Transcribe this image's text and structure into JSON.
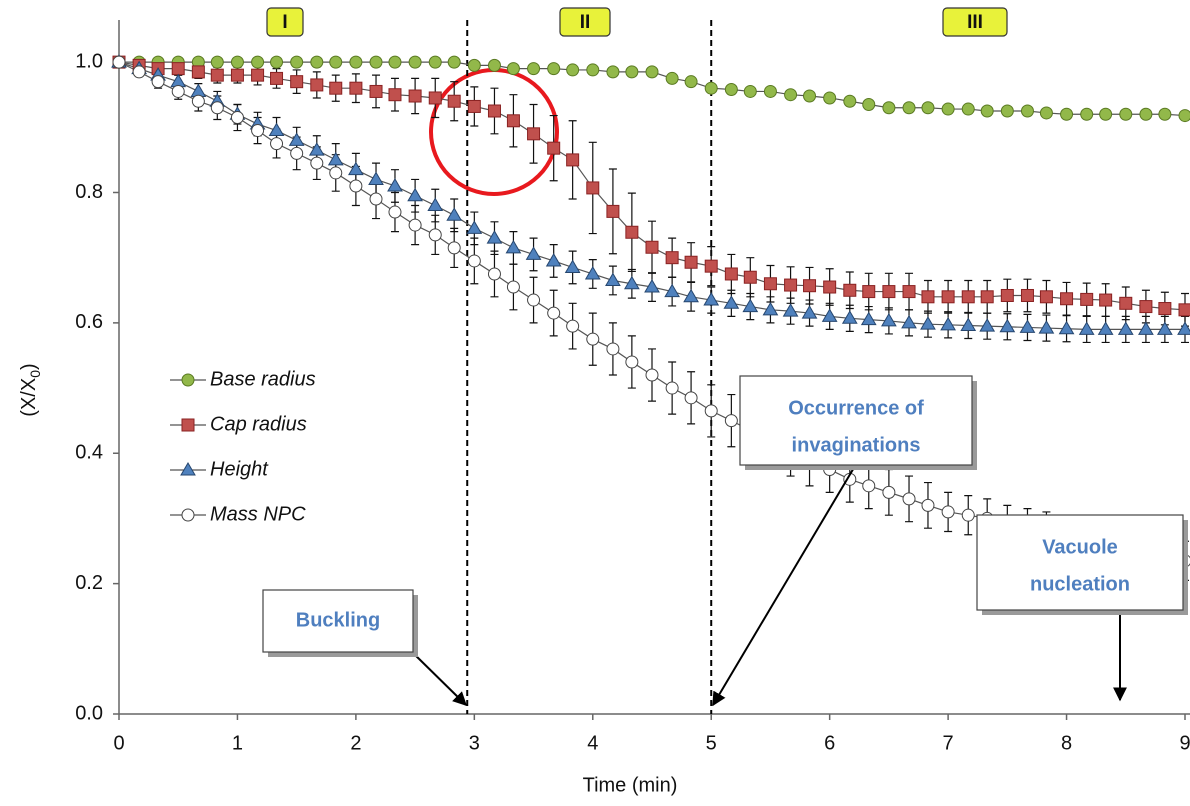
{
  "chart_data": {
    "type": "line",
    "x": [
      0,
      0.17,
      0.33,
      0.5,
      0.67,
      0.83,
      1,
      1.17,
      1.33,
      1.5,
      1.67,
      1.83,
      2,
      2.17,
      2.33,
      2.5,
      2.67,
      2.83,
      3,
      3.17,
      3.33,
      3.5,
      3.67,
      3.83,
      4,
      4.17,
      4.33,
      4.5,
      4.67,
      4.83,
      5,
      5.17,
      5.33,
      5.5,
      5.67,
      5.83,
      6,
      6.17,
      6.33,
      6.5,
      6.67,
      6.83,
      7,
      7.17,
      7.33,
      7.5,
      7.67,
      7.83,
      8,
      8.17,
      8.33,
      8.5,
      8.67,
      8.83,
      9
    ],
    "series": [
      {
        "name": "Base radius",
        "color": "#92b84a",
        "marker": "circle",
        "values": [
          1,
          1,
          1,
          1,
          1,
          1,
          1,
          1,
          1,
          1,
          1,
          1,
          1,
          1,
          1,
          1,
          1,
          1,
          0.995,
          0.995,
          0.99,
          0.99,
          0.99,
          0.988,
          0.988,
          0.985,
          0.985,
          0.985,
          0.975,
          0.97,
          0.96,
          0.958,
          0.955,
          0.955,
          0.95,
          0.948,
          0.945,
          0.94,
          0.935,
          0.93,
          0.93,
          0.93,
          0.928,
          0.928,
          0.925,
          0.925,
          0.925,
          0.922,
          0.92,
          0.92,
          0.92,
          0.92,
          0.92,
          0.92,
          0.918
        ]
      },
      {
        "name": "Cap radius",
        "color": "#c0504d",
        "marker": "square",
        "values": [
          1,
          0.995,
          0.99,
          0.99,
          0.985,
          0.98,
          0.98,
          0.98,
          0.975,
          0.97,
          0.965,
          0.96,
          0.96,
          0.955,
          0.95,
          0.948,
          0.945,
          0.94,
          0.932,
          0.925,
          0.91,
          0.89,
          0.868,
          0.85,
          0.807,
          0.771,
          0.739,
          0.716,
          0.7,
          0.693,
          0.687,
          0.675,
          0.67,
          0.66,
          0.658,
          0.657,
          0.655,
          0.65,
          0.648,
          0.648,
          0.648,
          0.64,
          0.64,
          0.64,
          0.64,
          0.642,
          0.642,
          0.64,
          0.637,
          0.636,
          0.635,
          0.63,
          0.625,
          0.622,
          0.62
        ],
        "errors": [
          0,
          0.005,
          0.008,
          0.01,
          0.01,
          0.012,
          0.012,
          0.015,
          0.015,
          0.018,
          0.02,
          0.02,
          0.022,
          0.025,
          0.025,
          0.027,
          0.03,
          0.03,
          0.03,
          0.035,
          0.04,
          0.045,
          0.05,
          0.06,
          0.07,
          0.065,
          0.06,
          0.04,
          0.03,
          0.03,
          0.03,
          0.03,
          0.03,
          0.028,
          0.028,
          0.028,
          0.028,
          0.028,
          0.028,
          0.028,
          0.028,
          0.025,
          0.025,
          0.025,
          0.025,
          0.025,
          0.025,
          0.025,
          0.025,
          0.025,
          0.025,
          0.025,
          0.025,
          0.025,
          0.025
        ]
      },
      {
        "name": "Height",
        "color": "#4f81bd",
        "marker": "triangle",
        "values": [
          1,
          0.99,
          0.98,
          0.97,
          0.955,
          0.94,
          0.92,
          0.905,
          0.895,
          0.88,
          0.865,
          0.85,
          0.835,
          0.82,
          0.81,
          0.795,
          0.78,
          0.765,
          0.745,
          0.73,
          0.715,
          0.705,
          0.695,
          0.685,
          0.675,
          0.665,
          0.66,
          0.655,
          0.648,
          0.64,
          0.635,
          0.63,
          0.625,
          0.62,
          0.618,
          0.615,
          0.61,
          0.607,
          0.605,
          0.603,
          0.6,
          0.598,
          0.597,
          0.596,
          0.595,
          0.594,
          0.593,
          0.592,
          0.591,
          0.59,
          0.59,
          0.59,
          0.59,
          0.59,
          0.59
        ],
        "errors": [
          0,
          0.005,
          0.008,
          0.01,
          0.012,
          0.015,
          0.015,
          0.018,
          0.02,
          0.02,
          0.022,
          0.025,
          0.025,
          0.025,
          0.025,
          0.025,
          0.025,
          0.025,
          0.025,
          0.025,
          0.025,
          0.025,
          0.025,
          0.025,
          0.022,
          0.022,
          0.022,
          0.022,
          0.022,
          0.022,
          0.02,
          0.02,
          0.02,
          0.02,
          0.02,
          0.02,
          0.02,
          0.02,
          0.02,
          0.02,
          0.02,
          0.02,
          0.02,
          0.02,
          0.02,
          0.02,
          0.02,
          0.02,
          0.02,
          0.02,
          0.02,
          0.02,
          0.02,
          0.02,
          0.02
        ]
      },
      {
        "name": "Mass NPC",
        "color": "#ffffff",
        "marker": "circle",
        "values": [
          1,
          0.985,
          0.97,
          0.955,
          0.94,
          0.93,
          0.915,
          0.895,
          0.875,
          0.86,
          0.845,
          0.83,
          0.81,
          0.79,
          0.77,
          0.75,
          0.735,
          0.715,
          0.695,
          0.675,
          0.655,
          0.635,
          0.615,
          0.595,
          0.575,
          0.56,
          0.54,
          0.52,
          0.5,
          0.485,
          0.465,
          0.45,
          0.435,
          0.42,
          0.405,
          0.39,
          0.375,
          0.36,
          0.35,
          0.34,
          0.33,
          0.32,
          0.31,
          0.305,
          0.3,
          0.29,
          0.285,
          0.28,
          0.275,
          0.27,
          0.265,
          0.255,
          0.25,
          0.24,
          0.235
        ],
        "errors": [
          0,
          0.005,
          0.01,
          0.012,
          0.015,
          0.018,
          0.02,
          0.02,
          0.022,
          0.025,
          0.025,
          0.028,
          0.03,
          0.03,
          0.03,
          0.03,
          0.03,
          0.03,
          0.035,
          0.035,
          0.035,
          0.035,
          0.035,
          0.035,
          0.04,
          0.04,
          0.04,
          0.04,
          0.04,
          0.04,
          0.04,
          0.04,
          0.04,
          0.04,
          0.04,
          0.04,
          0.035,
          0.035,
          0.035,
          0.035,
          0.035,
          0.035,
          0.03,
          0.03,
          0.03,
          0.03,
          0.03,
          0.03,
          0.03,
          0.03,
          0.03,
          0.03,
          0.03,
          0.03,
          0.03
        ]
      }
    ],
    "xlabel": "Time (min)",
    "ylabel": [
      "(X/X",
      "0",
      ")"
    ],
    "xlim": [
      0,
      9
    ],
    "ylim": [
      0,
      1.06
    ],
    "xticks": [
      0,
      1,
      2,
      3,
      4,
      5,
      6,
      7,
      8,
      9
    ],
    "yticks": [
      {
        "value": 0,
        "label": "0.0"
      },
      0.2,
      0.4,
      0.6,
      0.8,
      {
        "value": 1,
        "label": "1.0"
      }
    ],
    "vlines": [
      2.94,
      5
    ],
    "regions": [
      "I",
      "II",
      "III"
    ],
    "annotations": [
      [
        "Buckling"
      ],
      [
        "Occurrence of",
        "invaginations"
      ],
      [
        "Vacuole",
        "nucleation"
      ]
    ],
    "legend": "left"
  }
}
